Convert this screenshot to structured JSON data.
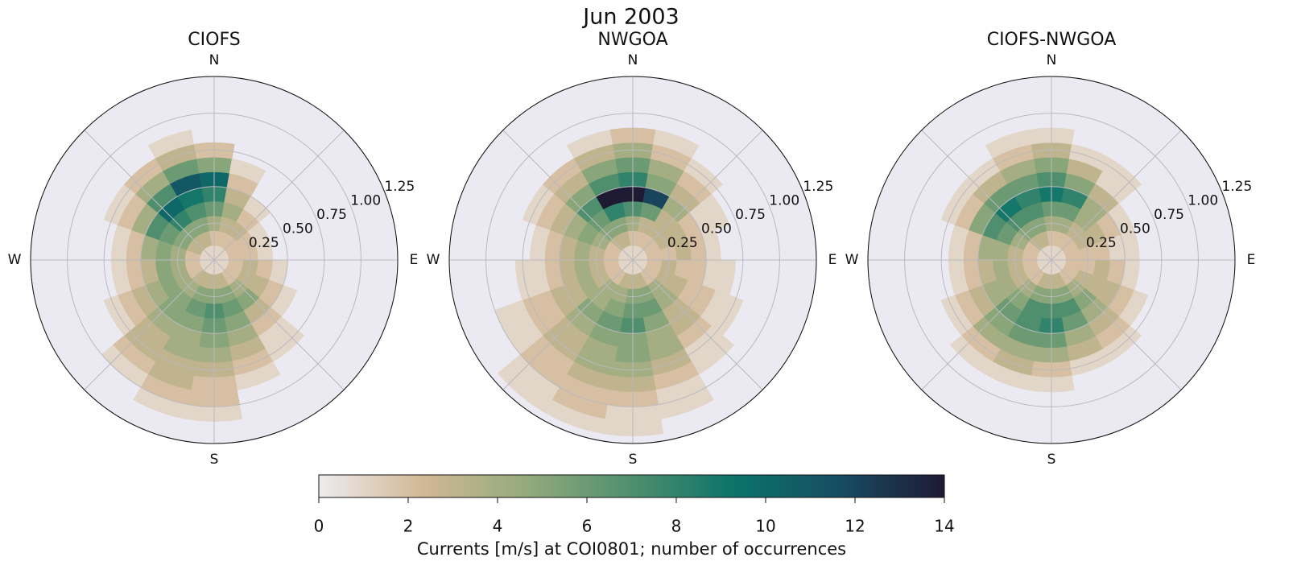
{
  "chart_data": {
    "title": "Jun 2003",
    "colorbar": {
      "label": "Currents [m/s] at COI0801; number of occurrences",
      "lim": [
        0,
        14
      ],
      "ticks": [
        0,
        2,
        4,
        6,
        8,
        10,
        12,
        14
      ],
      "colormap": [
        "#eeecef",
        "#d2b895",
        "#93aa7c",
        "#4f8f6d",
        "#0a7369",
        "#174c63",
        "#1e1a33"
      ]
    },
    "panels": [
      {
        "type": "polar-histogram",
        "title": "CIOFS",
        "theta_labels": [
          "N",
          "E",
          "S",
          "W"
        ],
        "rlim": [
          0,
          1.25
        ],
        "rticks": [
          0.25,
          {
            "value": 0.5,
            "label": "0.50"
          },
          0.75,
          {
            "value": 1.0,
            "label": "1.00"
          },
          1.25
        ],
        "theta_bins": [
          -10,
          10,
          30,
          50,
          70,
          90,
          110,
          130,
          150,
          170,
          190,
          210,
          230,
          250,
          270,
          290,
          310,
          330,
          350
        ],
        "r_bins": [
          0,
          0.1,
          0.2,
          0.3,
          0.4,
          0.5,
          0.6,
          0.7,
          0.8,
          0.9,
          1.0,
          1.1,
          1.2
        ],
        "counts": [
          [
            1,
            2,
            4,
            6,
            8,
            10,
            5,
            2,
            0,
            0,
            0,
            0
          ],
          [
            1,
            2,
            3,
            4,
            3,
            2,
            1,
            0,
            0,
            0,
            0,
            0
          ],
          [
            1,
            2,
            3,
            2,
            1,
            0,
            0,
            0,
            0,
            0,
            0,
            0
          ],
          [
            1,
            2,
            2,
            1,
            0,
            0,
            0,
            0,
            0,
            0,
            0,
            0
          ],
          [
            1,
            2,
            2,
            1,
            0,
            0,
            0,
            0,
            0,
            0,
            0,
            0
          ],
          [
            1,
            2,
            3,
            2,
            1,
            0,
            0,
            0,
            0,
            0,
            0,
            0
          ],
          [
            1,
            2,
            3,
            3,
            2,
            1,
            0,
            0,
            0,
            0,
            0,
            0
          ],
          [
            1,
            2,
            4,
            5,
            3,
            2,
            1,
            1,
            0,
            0,
            0,
            0
          ],
          [
            1,
            3,
            5,
            6,
            5,
            4,
            3,
            2,
            1,
            0,
            0,
            0
          ],
          [
            1,
            3,
            5,
            7,
            6,
            5,
            4,
            3,
            2,
            2,
            1,
            0
          ],
          [
            1,
            3,
            5,
            6,
            5,
            4,
            4,
            3,
            3,
            2,
            1,
            0
          ],
          [
            1,
            3,
            4,
            5,
            5,
            4,
            3,
            3,
            2,
            1,
            0,
            0
          ],
          [
            1,
            2,
            4,
            5,
            4,
            3,
            2,
            1,
            0,
            0,
            0,
            0
          ],
          [
            1,
            2,
            4,
            5,
            3,
            2,
            1,
            0,
            0,
            0,
            0,
            0
          ],
          [
            1,
            2,
            4,
            5,
            4,
            2,
            1,
            0,
            0,
            0,
            0,
            0
          ],
          [
            1,
            3,
            5,
            6,
            7,
            4,
            2,
            1,
            0,
            0,
            0,
            0
          ],
          [
            1,
            3,
            5,
            8,
            10,
            7,
            4,
            2,
            0,
            0,
            0,
            0
          ],
          [
            1,
            3,
            5,
            7,
            9,
            11,
            6,
            3,
            1,
            0,
            0,
            0
          ]
        ]
      },
      {
        "type": "polar-histogram",
        "title": "NWGOA",
        "theta_labels": [
          "N",
          "E",
          "S",
          "W"
        ],
        "rlim": [
          0,
          1.25
        ],
        "rticks": [
          0.25,
          {
            "value": 0.5,
            "label": "0.50"
          },
          0.75,
          {
            "value": 1.0,
            "label": "1.00"
          },
          1.25
        ],
        "theta_bins": [
          -10,
          10,
          30,
          50,
          70,
          90,
          110,
          130,
          150,
          170,
          190,
          210,
          230,
          250,
          270,
          290,
          310,
          330,
          350
        ],
        "r_bins": [
          0,
          0.1,
          0.2,
          0.3,
          0.4,
          0.5,
          0.6,
          0.7,
          0.8,
          0.9,
          1.0,
          1.1,
          1.2
        ],
        "counts": [
          [
            1,
            2,
            4,
            7,
            14,
            8,
            6,
            4,
            2,
            0,
            0,
            0
          ],
          [
            1,
            2,
            3,
            6,
            12,
            5,
            4,
            2,
            1,
            0,
            0,
            0
          ],
          [
            1,
            2,
            3,
            3,
            4,
            3,
            2,
            1,
            0,
            0,
            0,
            0
          ],
          [
            1,
            2,
            3,
            3,
            2,
            1,
            1,
            0,
            0,
            0,
            0,
            0
          ],
          [
            1,
            2,
            2,
            3,
            2,
            1,
            0,
            0,
            0,
            0,
            0,
            0
          ],
          [
            1,
            2,
            3,
            2,
            2,
            1,
            1,
            0,
            0,
            0,
            0,
            0
          ],
          [
            1,
            2,
            3,
            3,
            2,
            2,
            1,
            1,
            0,
            0,
            0,
            0
          ],
          [
            1,
            2,
            4,
            4,
            3,
            3,
            2,
            1,
            1,
            0,
            0,
            0
          ],
          [
            1,
            3,
            5,
            6,
            5,
            4,
            4,
            3,
            2,
            1,
            1,
            0
          ],
          [
            1,
            3,
            5,
            6,
            7,
            5,
            5,
            4,
            3,
            2,
            1,
            1
          ],
          [
            1,
            3,
            4,
            5,
            6,
            5,
            4,
            4,
            3,
            2,
            2,
            1
          ],
          [
            1,
            2,
            4,
            4,
            5,
            4,
            3,
            3,
            2,
            2,
            1,
            1
          ],
          [
            1,
            2,
            3,
            4,
            3,
            3,
            2,
            2,
            1,
            1,
            0,
            0
          ],
          [
            1,
            2,
            3,
            4,
            3,
            2,
            1,
            1,
            0,
            0,
            0,
            0
          ],
          [
            1,
            2,
            3,
            4,
            3,
            2,
            1,
            0,
            0,
            0,
            0,
            0
          ],
          [
            1,
            2,
            4,
            5,
            4,
            3,
            2,
            1,
            0,
            0,
            0,
            0
          ],
          [
            1,
            3,
            5,
            6,
            7,
            5,
            3,
            2,
            0,
            0,
            0,
            0
          ],
          [
            1,
            3,
            5,
            8,
            14,
            7,
            5,
            3,
            1,
            0,
            0,
            0
          ]
        ]
      },
      {
        "type": "polar-histogram",
        "title": "CIOFS-NWGOA",
        "theta_labels": [
          "N",
          "E",
          "S",
          "W"
        ],
        "rlim": [
          0,
          1.25
        ],
        "rticks": [
          0.25,
          {
            "value": 0.5,
            "label": "0.50"
          },
          0.75,
          {
            "value": 1.0,
            "label": "1.00"
          },
          1.25
        ],
        "theta_bins": [
          -10,
          10,
          30,
          50,
          70,
          90,
          110,
          130,
          150,
          170,
          190,
          210,
          230,
          250,
          270,
          290,
          310,
          330,
          350
        ],
        "r_bins": [
          0,
          0.1,
          0.2,
          0.3,
          0.4,
          0.5,
          0.6,
          0.7,
          0.8,
          0.9,
          1.0,
          1.1,
          1.2
        ],
        "counts": [
          [
            1,
            2,
            4,
            6,
            9,
            7,
            5,
            3,
            1,
            0,
            0,
            0
          ],
          [
            1,
            2,
            4,
            6,
            8,
            5,
            3,
            1,
            0,
            0,
            0,
            0
          ],
          [
            1,
            2,
            3,
            4,
            4,
            3,
            1,
            1,
            0,
            0,
            0,
            0
          ],
          [
            1,
            2,
            3,
            3,
            2,
            1,
            0,
            0,
            0,
            0,
            0,
            0
          ],
          [
            1,
            2,
            2,
            2,
            1,
            1,
            0,
            0,
            0,
            0,
            0,
            0
          ],
          [
            1,
            2,
            2,
            3,
            2,
            1,
            0,
            0,
            0,
            0,
            0,
            0
          ],
          [
            1,
            2,
            3,
            3,
            3,
            2,
            1,
            0,
            0,
            0,
            0,
            0
          ],
          [
            1,
            2,
            4,
            5,
            4,
            3,
            2,
            1,
            0,
            0,
            0,
            0
          ],
          [
            1,
            3,
            5,
            7,
            6,
            4,
            3,
            1,
            0,
            0,
            0,
            0
          ],
          [
            1,
            3,
            5,
            7,
            8,
            6,
            4,
            2,
            1,
            0,
            0,
            0
          ],
          [
            1,
            3,
            5,
            7,
            7,
            6,
            4,
            3,
            1,
            0,
            0,
            0
          ],
          [
            1,
            2,
            4,
            5,
            6,
            5,
            4,
            2,
            1,
            0,
            0,
            0
          ],
          [
            1,
            2,
            3,
            4,
            4,
            3,
            2,
            1,
            0,
            0,
            0,
            0
          ],
          [
            1,
            2,
            3,
            4,
            3,
            2,
            1,
            0,
            0,
            0,
            0,
            0
          ],
          [
            1,
            2,
            3,
            4,
            4,
            2,
            1,
            0,
            0,
            0,
            0,
            0
          ],
          [
            1,
            2,
            4,
            6,
            7,
            5,
            2,
            1,
            0,
            0,
            0,
            0
          ],
          [
            1,
            3,
            5,
            7,
            9,
            6,
            3,
            1,
            0,
            0,
            0,
            0
          ],
          [
            1,
            3,
            5,
            7,
            8,
            6,
            4,
            2,
            1,
            0,
            0,
            0
          ]
        ]
      }
    ]
  }
}
